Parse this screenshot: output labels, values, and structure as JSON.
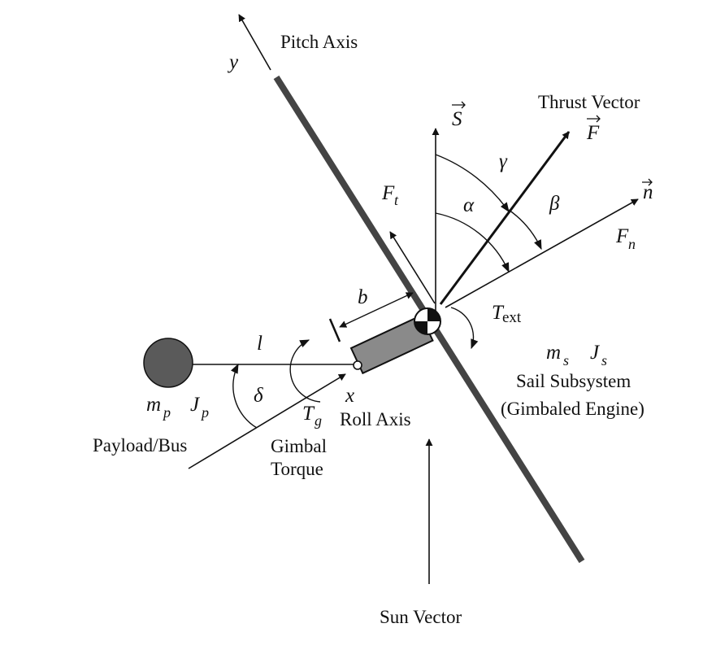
{
  "labels": {
    "pitch_axis": "Pitch Axis",
    "y": "y",
    "S": "S",
    "thrust_vector": "Thrust Vector",
    "F": "F",
    "gamma": "γ",
    "Ft_main": "F",
    "Ft_sub": "t",
    "alpha": "α",
    "beta": "β",
    "n": "n",
    "Fn_main": "F",
    "Fn_sub": "n",
    "b": "b",
    "T_ext_main": "T",
    "T_ext_sub": "ext",
    "l": "l",
    "ms_main": "m",
    "ms_sub": "s",
    "Js_main": "J",
    "Js_sub": "s",
    "sail_subsystem": "Sail Subsystem",
    "gimbaled_engine": "(Gimbaled Engine)",
    "delta": "δ",
    "x": "x",
    "mp_main": "m",
    "mp_sub": "p",
    "Jp_main": "J",
    "Jp_sub": "p",
    "Tg_main": "T",
    "Tg_sub": "g",
    "roll_axis": "Roll Axis",
    "payload_bus": "Payload/Bus",
    "gimbal": "Gimbal",
    "torque": "Torque",
    "sun_vector": "Sun Vector"
  },
  "colors": {
    "ink": "#111111",
    "sail_fill": "#555555",
    "payload_fill": "#5a5a5a",
    "box_fill": "#8a8a8a"
  }
}
